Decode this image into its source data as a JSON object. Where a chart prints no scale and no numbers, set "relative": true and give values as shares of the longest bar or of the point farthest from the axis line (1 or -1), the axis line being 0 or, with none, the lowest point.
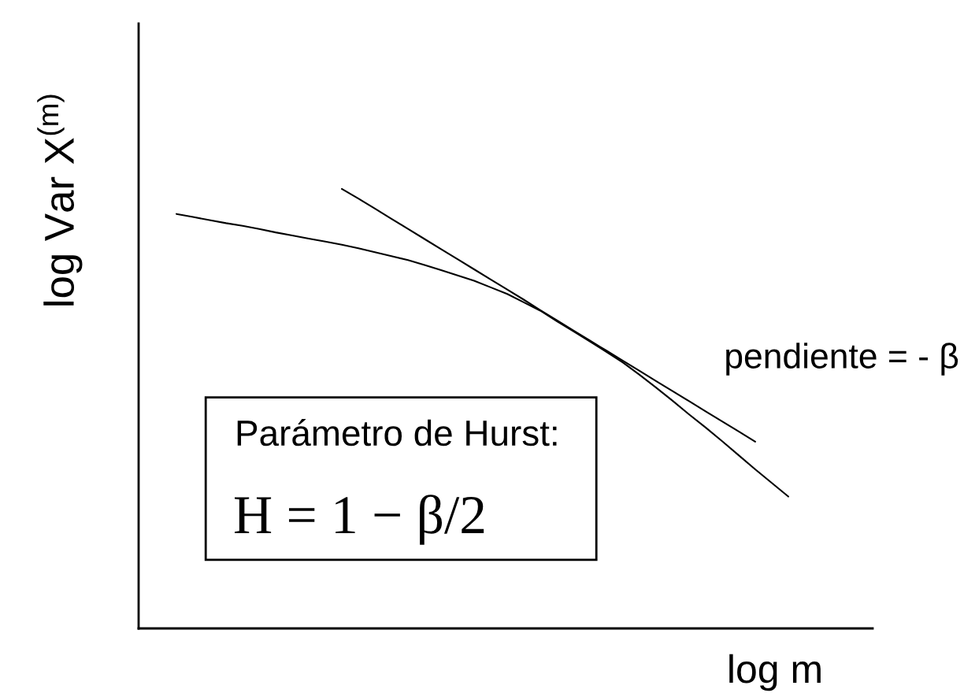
{
  "chart_data": {
    "type": "line",
    "relative": true,
    "tick_labels": false,
    "xlabel": "log m",
    "ylabel": "log Var X$^{(m)}$",
    "annotations": [
      "pendiente = - β",
      "Parámetro de Hurst:",
      "H = 1 − β/2"
    ],
    "categories": [
      null,
      null,
      null,
      null,
      null,
      null,
      null,
      null,
      null,
      null,
      null,
      null,
      null,
      null,
      null,
      null,
      null,
      null,
      null,
      null,
      null,
      null,
      null,
      null,
      null,
      null,
      null,
      null,
      null,
      null,
      null,
      null,
      null,
      null,
      null,
      null,
      null,
      null
    ],
    "series": [
      {
        "color": "#000000",
        "values": [
          0.943,
          0.936,
          0.929,
          0.922,
          0.916,
          0.909,
          0.901,
          0.894,
          0.887,
          0.88,
          0.873,
          0.865,
          0.856,
          0.847,
          0.838,
          0.827,
          0.815,
          0.803,
          0.791,
          0.776,
          0.761,
          0.742,
          0.723,
          0.699,
          0.676,
          0.653,
          0.629,
          0.605,
          0.577,
          0.548,
          0.518,
          0.487,
          0.457,
          0.426,
          0.394,
          0.362,
          0.331,
          0.3
        ]
      },
      {
        "color": "#000000",
        "values": [
          null,
          null,
          null,
          null,
          null,
          null,
          null,
          null,
          null,
          null,
          1.0,
          0.978,
          0.955,
          0.932,
          0.909,
          0.886,
          0.863,
          0.84,
          0.817,
          0.794,
          0.771,
          0.748,
          0.724,
          0.701,
          0.678,
          0.655,
          0.632,
          0.609,
          0.586,
          0.563,
          0.54,
          0.517,
          0.494,
          0.471,
          0.448,
          0.425,
          null,
          null
        ]
      }
    ]
  }
}
